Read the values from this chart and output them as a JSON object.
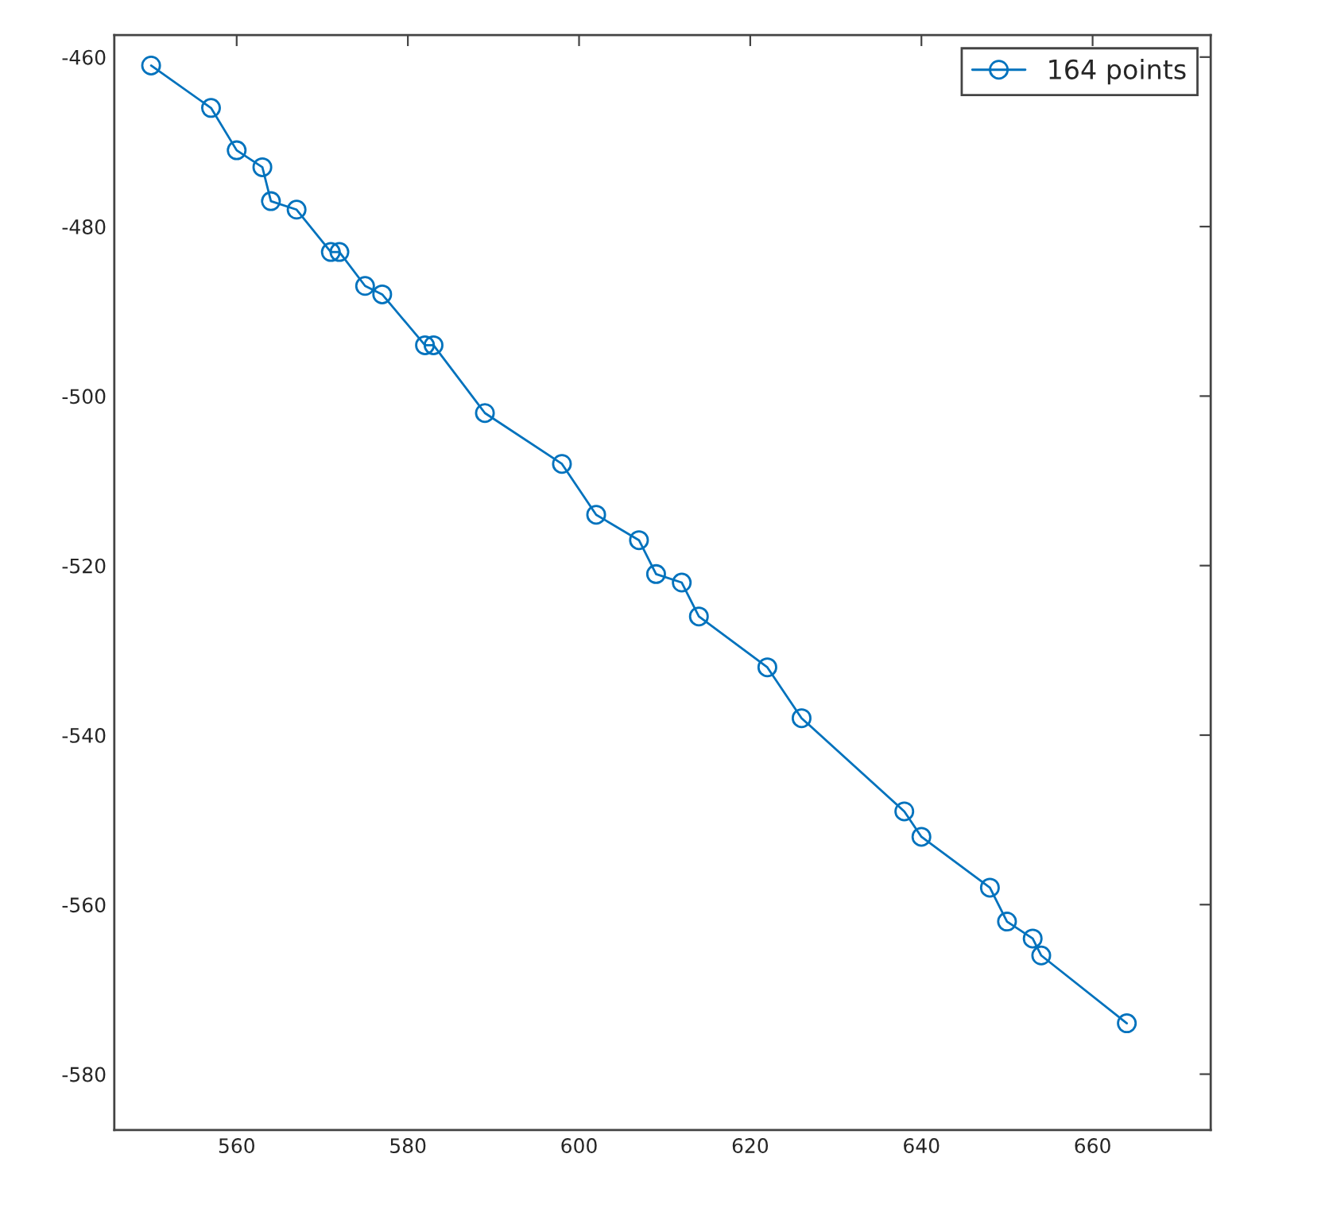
{
  "chart_data": {
    "type": "line",
    "x": [
      550,
      557,
      560,
      563,
      564,
      567,
      571,
      572,
      575,
      577,
      582,
      583,
      589,
      598,
      602,
      607,
      609,
      612,
      614,
      622,
      626,
      638,
      640,
      648,
      650,
      653,
      654,
      664
    ],
    "series": [
      {
        "name": "164 points",
        "color": "#0072bd",
        "values": [
          -461,
          -466,
          -471,
          -473,
          -477,
          -478,
          -483,
          -483,
          -487,
          -488,
          -494,
          -494,
          -502,
          -508,
          -514,
          -517,
          -521,
          -522,
          -526,
          -532,
          -538,
          -549,
          -552,
          -558,
          -562,
          -564,
          -566,
          -574
        ]
      }
    ],
    "xlim": [
      545.7,
      673.8
    ],
    "ylim": [
      -586.6,
      -457.4
    ],
    "xticks": [
      560,
      580,
      600,
      620,
      640,
      660
    ],
    "yticks": [
      -580,
      -560,
      -540,
      -520,
      -500,
      -480,
      -460
    ],
    "marker": "circle",
    "line_style": "solid",
    "grid": false,
    "legend": "top right"
  }
}
